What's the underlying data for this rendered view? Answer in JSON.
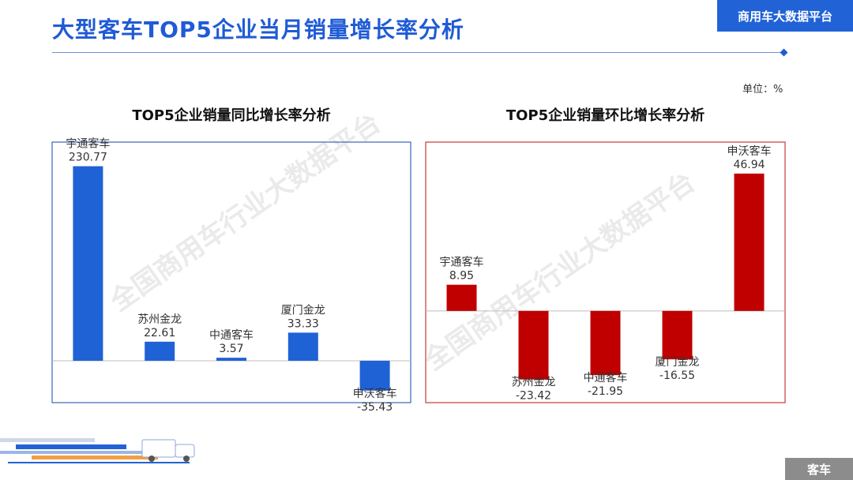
{
  "header": {
    "title": "大型客车TOP5企业当月销量增长率分析",
    "brand": "商用车大数据平台"
  },
  "unit_label": "单位：%",
  "footer_tag": "客车",
  "watermark": "全国商用车行业大数据平台",
  "colors": {
    "accent": "#1f5bd6",
    "blue_bar": "#1f62d6",
    "red_bar": "#c00000",
    "red_frame": "#c43a3a",
    "blue_frame": "#3a66b8"
  },
  "chart_data": [
    {
      "type": "bar",
      "title": "TOP5企业销量同比增长率分析",
      "categories": [
        "宇通客车",
        "苏州金龙",
        "中通客车",
        "厦门金龙",
        "申沃客车"
      ],
      "values": [
        230.77,
        22.61,
        3.57,
        33.33,
        -35.43
      ],
      "value_labels": [
        "230.77",
        "22.61",
        "3.57",
        "33.33",
        "-35.43"
      ],
      "ylim": [
        -45,
        250
      ],
      "grid": false
    },
    {
      "type": "bar",
      "title": "TOP5企业销量环比增长率分析",
      "categories": [
        "宇通客车",
        "苏州金龙",
        "中通客车",
        "厦门金龙",
        "申沃客车"
      ],
      "values": [
        8.95,
        -23.42,
        -21.95,
        -16.55,
        46.94
      ],
      "value_labels": [
        "8.95",
        "-23.42",
        "-21.95",
        "-16.55",
        "46.94"
      ],
      "ylim": [
        -30,
        55
      ],
      "grid": false
    }
  ]
}
